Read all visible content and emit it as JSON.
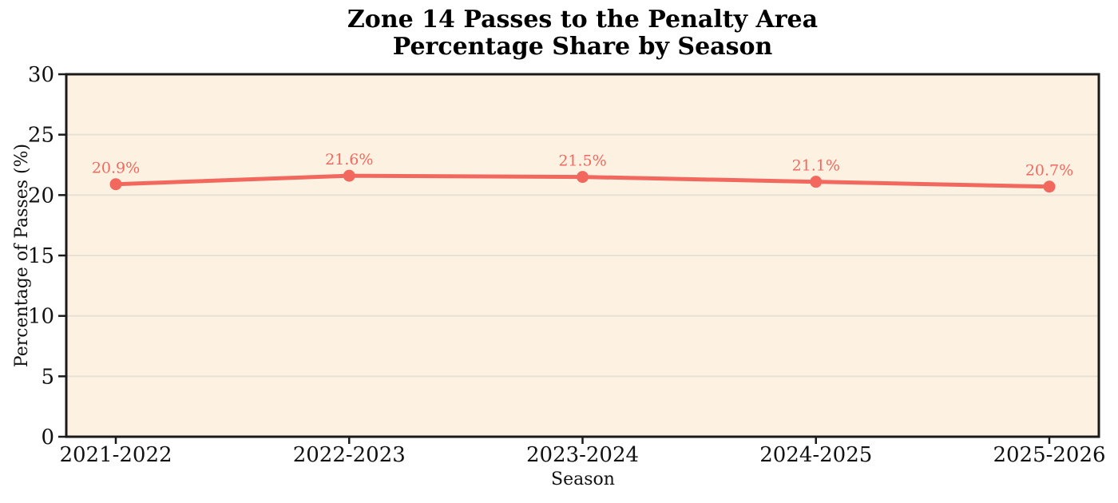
{
  "title": {
    "line1": "Zone 14 Passes to the Penalty Area",
    "line2": "Percentage Share by Season"
  },
  "chart_data": {
    "type": "line",
    "title": "Zone 14 Passes to the Penalty Area — Percentage Share by Season",
    "categories": [
      "2021-2022",
      "2022-2023",
      "2023-2024",
      "2024-2025",
      "2025-2026"
    ],
    "values": [
      20.9,
      21.6,
      21.5,
      21.1,
      20.7
    ],
    "point_labels": [
      "20.9%",
      "21.6%",
      "21.5%",
      "21.1%",
      "20.7%"
    ],
    "xlabel": "Season",
    "ylabel": "Percentage of Passes (%)",
    "ylim": [
      0,
      30
    ],
    "yticks": [
      0,
      5,
      10,
      15,
      20,
      25,
      30
    ],
    "grid": "horizontal-only",
    "legend": "none",
    "colors": {
      "line": "#F3685E",
      "marker": "#F3685E",
      "point_label": "#F3685E",
      "plot_background": "#FDF2E2",
      "figure_background": "#FFFFFF",
      "gridline": "#E9E0D5",
      "spine": "#1A1A1A",
      "text": "#111111"
    }
  }
}
